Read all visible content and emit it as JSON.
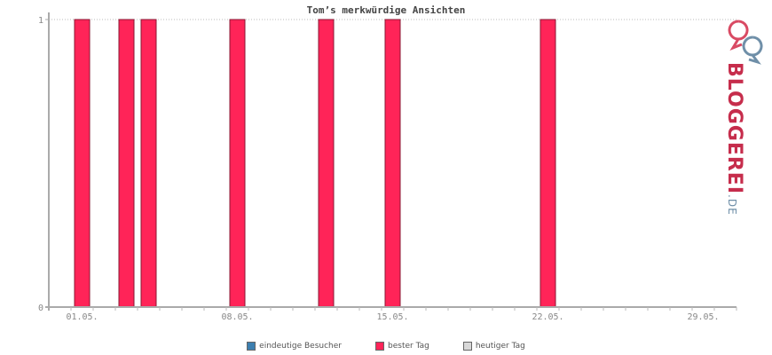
{
  "chart_data": {
    "type": "bar",
    "title": "Tom’s merkwürdige Ansichten",
    "x_tick_labels": [
      "01.05.",
      "08.05.",
      "15.05.",
      "22.05.",
      "29.05."
    ],
    "x_tick_days": [
      1,
      8,
      15,
      22,
      29
    ],
    "y_tick_labels": [
      "0",
      "1"
    ],
    "ylim": [
      0,
      1
    ],
    "xlim_days": [
      0,
      31
    ],
    "series": [
      {
        "name": "bester Tag",
        "color": "#ff2458",
        "days": [
          1,
          3,
          4,
          8,
          12,
          15,
          22
        ],
        "values": [
          1,
          1,
          1,
          1,
          1,
          1,
          1
        ]
      }
    ],
    "grid": "top dotted line at 1",
    "legend_position": "bottom"
  },
  "legend": [
    {
      "label": "eindeutige Besucher",
      "color": "#3d7fb0"
    },
    {
      "label": "bester Tag",
      "color": "#ff2458"
    },
    {
      "label": "heutiger Tag",
      "color": "#d8d8d8"
    }
  ],
  "logo": {
    "text": "BLOGGEREI",
    "suffix": ".DE"
  }
}
